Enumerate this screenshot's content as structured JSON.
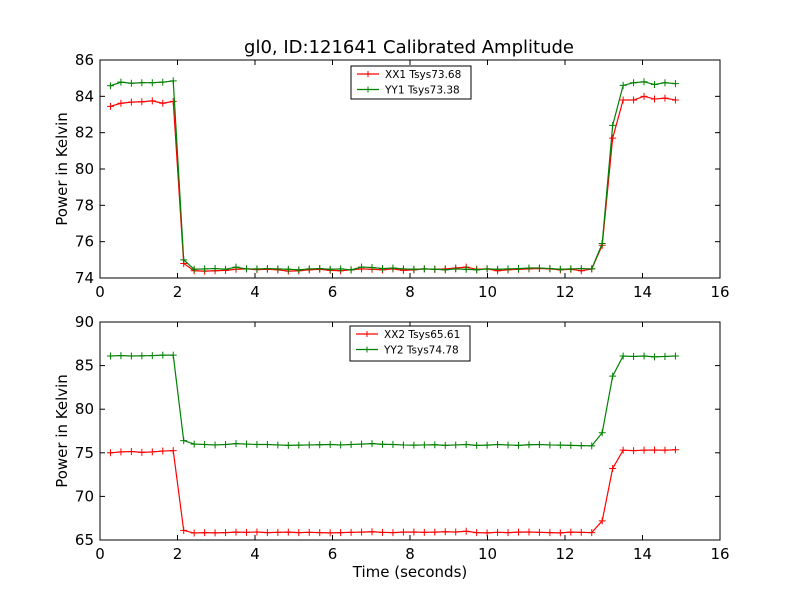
{
  "chart_data": [
    {
      "type": "line",
      "title": "gl0, ID:121641 Calibrated Amplitude",
      "xlabel": "",
      "ylabel": "Power in Kelvin",
      "xlim": [
        0,
        16
      ],
      "ylim": [
        74,
        86
      ],
      "xticks": [
        0,
        2,
        4,
        6,
        8,
        10,
        12,
        14,
        16
      ],
      "yticks": [
        74,
        76,
        78,
        80,
        82,
        84,
        86
      ],
      "legend_position": "top-center",
      "x": [
        0.27,
        0.54,
        0.81,
        1.08,
        1.35,
        1.62,
        1.89,
        2.16,
        2.43,
        2.7,
        2.97,
        3.24,
        3.51,
        3.78,
        4.05,
        4.32,
        4.59,
        4.86,
        5.13,
        5.4,
        5.67,
        5.94,
        6.21,
        6.48,
        6.75,
        7.02,
        7.29,
        7.56,
        7.83,
        8.1,
        8.37,
        8.64,
        8.91,
        9.18,
        9.45,
        9.72,
        9.99,
        10.26,
        10.53,
        10.8,
        11.07,
        11.34,
        11.61,
        11.88,
        12.15,
        12.42,
        12.69,
        12.96,
        13.23,
        13.5,
        13.77,
        14.04,
        14.31,
        14.58,
        14.85
      ],
      "series": [
        {
          "name": "XX1 Tsys73.68",
          "color": "#ff0000",
          "values": [
            83.45,
            83.62,
            83.68,
            83.7,
            83.75,
            83.62,
            83.72,
            74.8,
            74.4,
            74.38,
            74.4,
            74.42,
            74.48,
            74.5,
            74.46,
            74.48,
            74.45,
            74.38,
            74.4,
            74.45,
            74.48,
            74.42,
            74.4,
            74.45,
            74.5,
            74.48,
            74.45,
            74.5,
            74.42,
            74.45,
            74.5,
            74.48,
            74.5,
            74.55,
            74.6,
            74.48,
            74.5,
            74.4,
            74.45,
            74.48,
            74.5,
            74.52,
            74.5,
            74.45,
            74.48,
            74.4,
            74.5,
            75.8,
            81.7,
            83.8,
            83.8,
            84.0,
            83.85,
            83.9,
            83.8
          ]
        },
        {
          "name": "YY1 Tsys73.38",
          "color": "#008000",
          "values": [
            84.58,
            84.78,
            84.72,
            84.75,
            84.75,
            84.78,
            84.85,
            75.0,
            74.48,
            74.5,
            74.52,
            74.48,
            74.6,
            74.5,
            74.5,
            74.52,
            74.5,
            74.48,
            74.45,
            74.5,
            74.52,
            74.48,
            74.5,
            74.45,
            74.6,
            74.58,
            74.52,
            74.55,
            74.5,
            74.48,
            74.5,
            74.48,
            74.45,
            74.5,
            74.48,
            74.45,
            74.5,
            74.48,
            74.5,
            74.52,
            74.55,
            74.55,
            74.52,
            74.48,
            74.5,
            74.52,
            74.5,
            75.9,
            82.4,
            84.6,
            84.75,
            84.8,
            84.65,
            84.75,
            84.7
          ]
        }
      ]
    },
    {
      "type": "line",
      "title": "",
      "xlabel": "Time (seconds)",
      "ylabel": "Power in Kelvin",
      "xlim": [
        0,
        16
      ],
      "ylim": [
        65,
        90
      ],
      "xticks": [
        0,
        2,
        4,
        6,
        8,
        10,
        12,
        14,
        16
      ],
      "yticks": [
        65,
        70,
        75,
        80,
        85,
        90
      ],
      "legend_position": "top-center",
      "x": [
        0.27,
        0.54,
        0.81,
        1.08,
        1.35,
        1.62,
        1.89,
        2.16,
        2.43,
        2.7,
        2.97,
        3.24,
        3.51,
        3.78,
        4.05,
        4.32,
        4.59,
        4.86,
        5.13,
        5.4,
        5.67,
        5.94,
        6.21,
        6.48,
        6.75,
        7.02,
        7.29,
        7.56,
        7.83,
        8.1,
        8.37,
        8.64,
        8.91,
        9.18,
        9.45,
        9.72,
        9.99,
        10.26,
        10.53,
        10.8,
        11.07,
        11.34,
        11.61,
        11.88,
        12.15,
        12.42,
        12.69,
        12.96,
        13.23,
        13.5,
        13.77,
        14.04,
        14.31,
        14.58,
        14.85
      ],
      "series": [
        {
          "name": "XX2 Tsys65.61",
          "color": "#ff0000",
          "values": [
            75.0,
            75.1,
            75.15,
            75.05,
            75.1,
            75.2,
            75.25,
            66.1,
            65.8,
            65.85,
            65.82,
            65.85,
            65.9,
            65.88,
            65.92,
            65.85,
            65.88,
            65.9,
            65.85,
            65.88,
            65.85,
            65.82,
            65.85,
            65.88,
            65.9,
            65.95,
            65.88,
            65.85,
            65.9,
            65.92,
            65.88,
            65.9,
            65.95,
            65.92,
            66.0,
            65.85,
            65.82,
            65.88,
            65.85,
            65.9,
            65.92,
            65.88,
            65.85,
            65.82,
            65.9,
            65.88,
            65.85,
            67.2,
            73.2,
            75.3,
            75.25,
            75.3,
            75.32,
            75.3,
            75.35
          ]
        },
        {
          "name": "YY2 Tsys74.78",
          "color": "#008000",
          "values": [
            86.1,
            86.15,
            86.1,
            86.12,
            86.15,
            86.2,
            86.2,
            76.4,
            76.0,
            75.95,
            75.9,
            75.95,
            76.05,
            76.0,
            75.95,
            75.95,
            75.9,
            75.85,
            75.88,
            75.9,
            75.92,
            75.95,
            75.9,
            75.95,
            76.0,
            76.05,
            75.98,
            75.95,
            75.9,
            75.88,
            75.9,
            75.92,
            75.85,
            75.9,
            75.95,
            75.85,
            75.88,
            75.95,
            75.9,
            75.85,
            75.92,
            75.95,
            75.9,
            75.88,
            75.85,
            75.82,
            75.8,
            77.3,
            83.8,
            86.1,
            86.05,
            86.1,
            86.0,
            86.05,
            86.1
          ]
        }
      ]
    }
  ]
}
